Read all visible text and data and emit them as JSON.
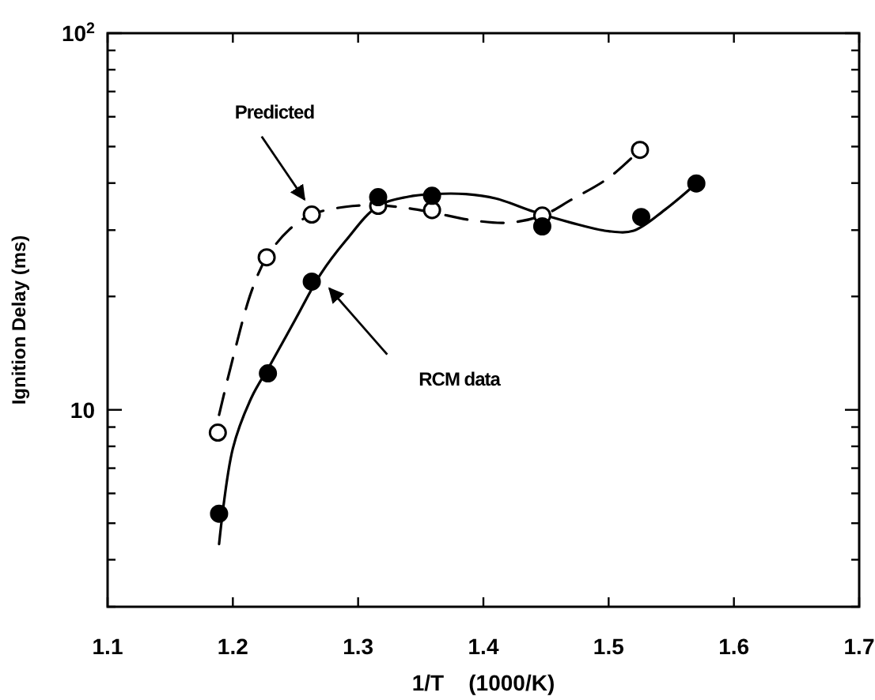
{
  "chart_data": {
    "type": "scatter",
    "xlabel": "1/T    (1000/K)",
    "ylabel": "Ignition Delay (ms)",
    "log": "y",
    "xlim": [
      1.1,
      1.7
    ],
    "ylim": [
      3,
      100
    ],
    "xticks": [
      1.1,
      1.2,
      1.3,
      1.4,
      1.5,
      1.6,
      1.7
    ],
    "yticks": [
      {
        "value": 3,
        "label": null
      },
      {
        "value": 4,
        "label": null
      },
      {
        "value": 5,
        "label": null
      },
      {
        "value": 6,
        "label": null
      },
      {
        "value": 7,
        "label": null
      },
      {
        "value": 8,
        "label": null
      },
      {
        "value": 9,
        "label": null
      },
      10,
      {
        "value": 20,
        "label": null
      },
      {
        "value": 30,
        "label": null
      },
      {
        "value": 40,
        "label": null
      },
      {
        "value": 50,
        "label": null
      },
      {
        "value": 60,
        "label": null
      },
      {
        "value": 70,
        "label": null
      },
      {
        "value": 80,
        "label": null
      },
      {
        "value": 90,
        "label": null
      },
      {
        "value": 100,
        "label": "10$^{2}$"
      }
    ],
    "grid": false,
    "series": [
      {
        "marker": "circle",
        "color": "#ffffff",
        "x": [
          1.188,
          1.227,
          1.263,
          1.316,
          1.359,
          1.447,
          1.525
        ],
        "values": [
          8.7,
          25.4,
          33,
          34.8,
          33.9,
          32.8,
          49
        ]
      },
      {
        "marker": "circle",
        "color": "#000000",
        "x": [
          1.189,
          1.228,
          1.263,
          1.316,
          1.359,
          1.447,
          1.526,
          1.57
        ],
        "values": [
          5.3,
          12.5,
          21.9,
          36.7,
          37,
          30.7,
          32.5,
          39.9
        ]
      },
      {
        "type": "line",
        "line_style": "dashed",
        "color": "#000000",
        "x": [
          1.189,
          1.2,
          1.215,
          1.227,
          1.245,
          1.263,
          1.29,
          1.316,
          1.34,
          1.36,
          1.39,
          1.42,
          1.447,
          1.47,
          1.5,
          1.525
        ],
        "values": [
          9.7,
          13.7,
          20.7,
          25.4,
          30.1,
          33,
          34.6,
          34.9,
          34.3,
          33.4,
          31.9,
          31.4,
          32.8,
          36.1,
          41.3,
          49
        ]
      },
      {
        "type": "line",
        "line_style": "solid",
        "color": "#000000",
        "x": [
          1.189,
          1.2,
          1.215,
          1.23,
          1.25,
          1.27,
          1.29,
          1.316,
          1.34,
          1.36,
          1.386,
          1.41,
          1.44,
          1.47,
          1.5,
          1.52,
          1.545,
          1.57
        ],
        "values": [
          4.4,
          7.9,
          10.8,
          13.2,
          17.4,
          22.9,
          28.1,
          34.8,
          36.8,
          37.4,
          37.4,
          36.4,
          33.6,
          31.4,
          29.8,
          29.9,
          34,
          39.9
        ]
      }
    ],
    "annotations": [
      "Predicted",
      "RCM data"
    ]
  }
}
